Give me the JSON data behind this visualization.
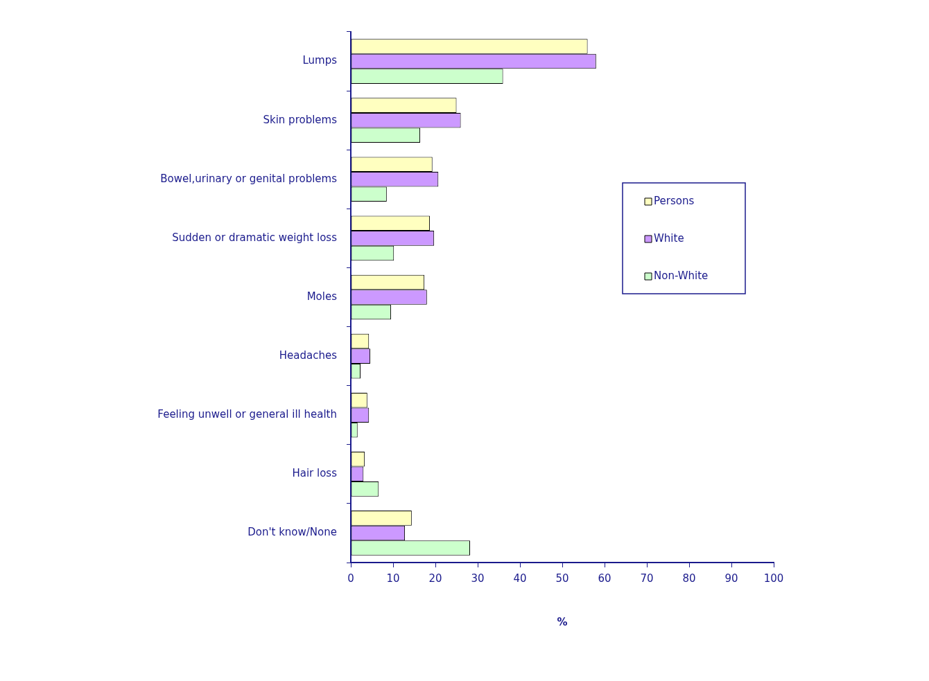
{
  "chart_data": {
    "type": "bar",
    "orientation": "horizontal",
    "xlabel": "%",
    "categories": [
      "Lumps",
      "Skin problems",
      "Bowel,urinary or genital problems",
      "Sudden or dramatic weight loss",
      "Moles",
      "Headaches",
      "Feeling unwell or general ill health",
      "Hair loss",
      "Don't know/None"
    ],
    "series": [
      {
        "name": "Persons",
        "color": "#ffffc0",
        "values": [
          56,
          25,
          19.3,
          18.7,
          17.4,
          4.3,
          3.9,
          3.3,
          14.4
        ]
      },
      {
        "name": "White",
        "color": "#cc99ff",
        "values": [
          58,
          26,
          20.7,
          19.7,
          18,
          4.6,
          4.3,
          3,
          12.8
        ]
      },
      {
        "name": "Non-White",
        "color": "#ccffcc",
        "values": [
          36,
          16.4,
          8.5,
          10.2,
          9.5,
          2.3,
          1.6,
          6.6,
          28.2
        ]
      }
    ],
    "xlim": [
      0,
      100
    ],
    "xticks": [
      0,
      10,
      20,
      30,
      40,
      50,
      60,
      70,
      80,
      90,
      100
    ],
    "grid": false,
    "legend": "right"
  }
}
